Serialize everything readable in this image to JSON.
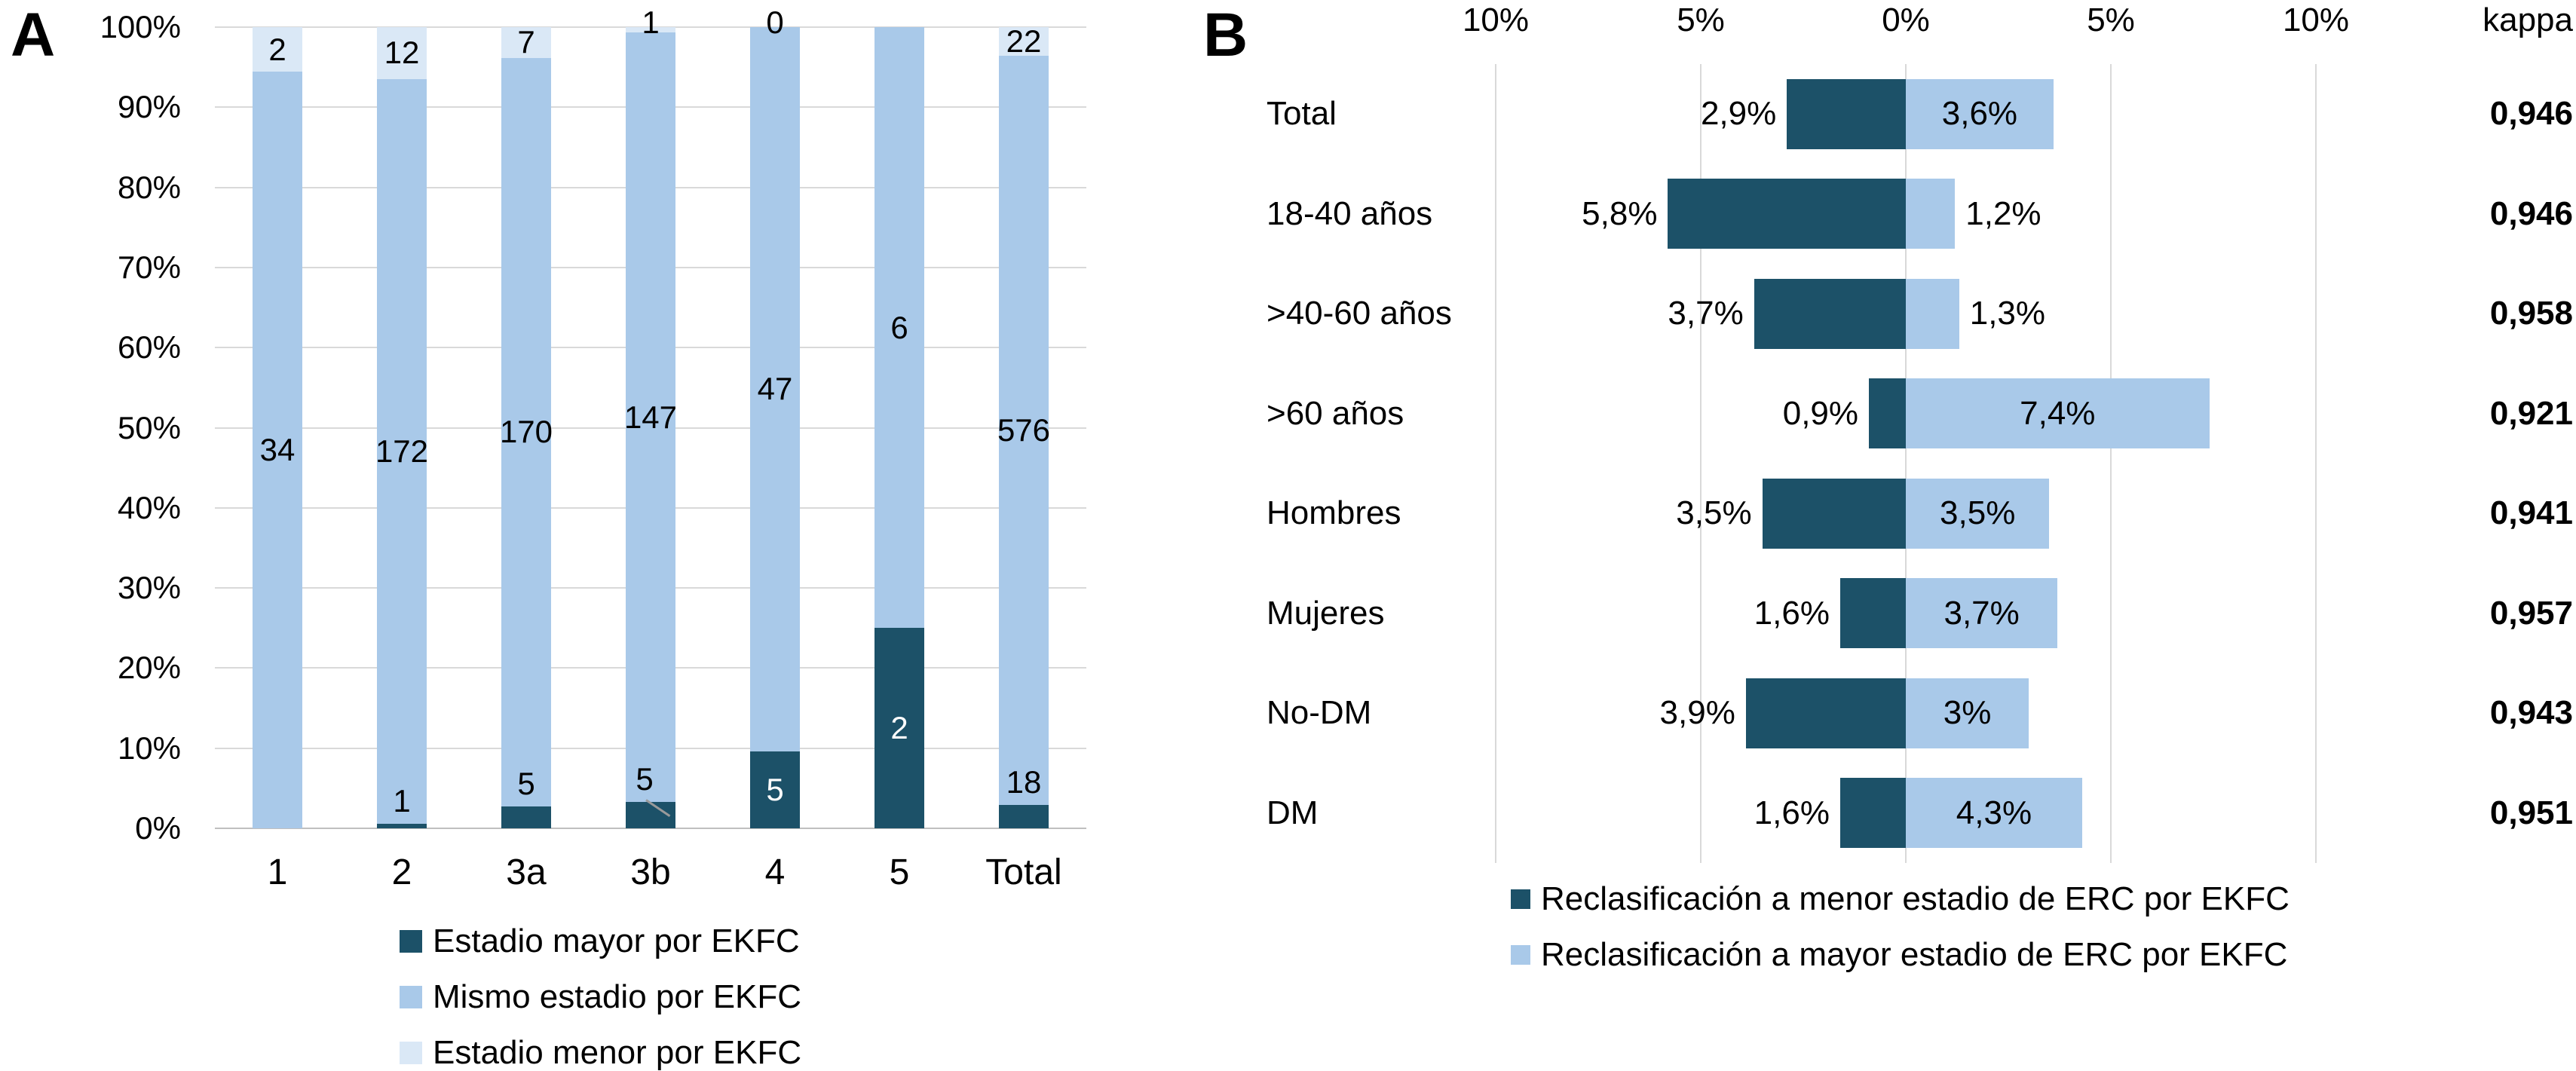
{
  "panels": {
    "a_letter": "A",
    "b_letter": "B"
  },
  "colors": {
    "dark": "#1c5168",
    "mid_blue": "#a9c9e9",
    "pale_blue": "#dae8f6",
    "gridline": "#d9d9d9",
    "axis": "#bfbfbf",
    "leader_line": "#9a9a9a"
  },
  "chart_data": [
    {
      "type": "bar",
      "subtype": "stacked-100-vertical",
      "title": "",
      "categories": [
        "1",
        "2",
        "3a",
        "3b",
        "4",
        "5",
        "Total"
      ],
      "y_tick_labels": [
        "0%",
        "10%",
        "20%",
        "30%",
        "40%",
        "50%",
        "60%",
        "70%",
        "80%",
        "90%",
        "100%"
      ],
      "ylim": [
        0,
        100
      ],
      "grid": "horizontal",
      "legend_position": "bottom-left",
      "series": [
        {
          "name": "Estadio mayor por EKFC",
          "color": "#1c5168",
          "values": [
            0,
            1,
            5,
            5,
            5,
            2,
            18
          ],
          "labels": [
            "",
            "1",
            "5",
            "5",
            "5",
            "2",
            "18"
          ]
        },
        {
          "name": "Mismo estadio por EKFC",
          "color": "#a9c9e9",
          "values": [
            34,
            172,
            170,
            147,
            47,
            6,
            576
          ],
          "labels": [
            "34",
            "172",
            "170",
            "147",
            "47",
            "6",
            "576"
          ]
        },
        {
          "name": "Estadio menor por EKFC",
          "color": "#dae8f6",
          "values": [
            2,
            12,
            7,
            1,
            0,
            0,
            22
          ],
          "labels": [
            "2",
            "12",
            "7",
            "1",
            "0",
            "",
            "22"
          ]
        }
      ],
      "leader_line_on_category": "3b"
    },
    {
      "type": "bar",
      "subtype": "diverging-horizontal",
      "title": "",
      "categories": [
        "Total",
        "18-40 años",
        ">40-60 años",
        ">60 años",
        "Hombres",
        "Mujeres",
        "No-DM",
        "DM"
      ],
      "x_axis_labels": [
        "10%",
        "5%",
        "0%",
        "5%",
        "10%"
      ],
      "x_axis_values": [
        -10,
        -5,
        0,
        5,
        10
      ],
      "kappa_header": "kappa",
      "kappa_values": [
        "0,946",
        "0,946",
        "0,958",
        "0,921",
        "0,941",
        "0,957",
        "0,943",
        "0,951"
      ],
      "grid": "vertical",
      "legend_position": "bottom-center",
      "series": [
        {
          "name": "Reclasificación a menor estadio de ERC por EKFC",
          "color": "#1c5168",
          "direction": "left",
          "values_pct": [
            2.9,
            5.8,
            3.7,
            0.9,
            3.5,
            1.6,
            3.9,
            1.6
          ],
          "labels": [
            "2,9%",
            "5,8%",
            "3,7%",
            "0,9%",
            "3,5%",
            "1,6%",
            "3,9%",
            "1,6%"
          ]
        },
        {
          "name": "Reclasificación a mayor estadio de ERC por EKFC",
          "color": "#a9c9e9",
          "direction": "right",
          "values_pct": [
            3.6,
            1.2,
            1.3,
            7.4,
            3.5,
            3.7,
            3.0,
            4.3
          ],
          "labels": [
            "3,6%",
            "1,2%",
            "1,3%",
            "7,4%",
            "3,5%",
            "3,7%",
            "3%",
            "4,3%"
          ]
        }
      ]
    }
  ]
}
